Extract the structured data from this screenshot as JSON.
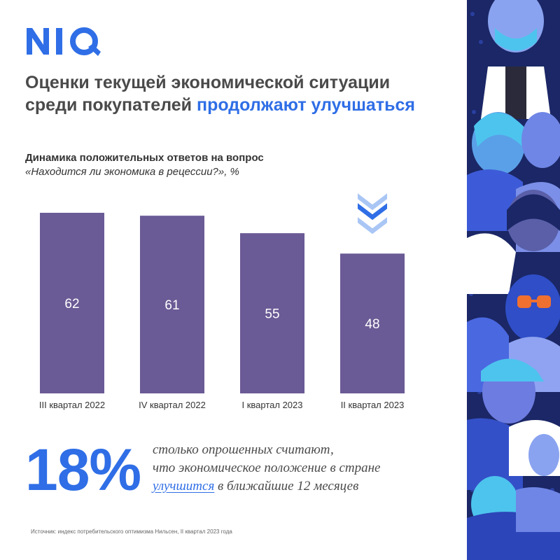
{
  "brand": {
    "logo_text": "NIQ",
    "color": "#2f6ee6"
  },
  "headline": {
    "line1": "Оценки текущей экономической ситуации",
    "line2_prefix": "среди покупателей ",
    "line2_accent": "продолжают улучшаться"
  },
  "subtitle": {
    "line1": "Динамика положительных ответов на вопрос",
    "line2": "«Находится ли экономика в рецессии?», %"
  },
  "chart_data": {
    "type": "bar",
    "categories": [
      "III квартал 2022",
      "IV квартал 2022",
      "I квартал 2023",
      "II квартал 2023"
    ],
    "values": [
      62,
      61,
      55,
      48
    ],
    "ylim": [
      0,
      62
    ],
    "bar_color": "#6a5a95",
    "trend_marker": {
      "icon": "double-chevron-down-icon",
      "category_index": 3,
      "color": "#2f6ee6"
    }
  },
  "stat": {
    "value": "18%",
    "line1": "столько опрошенных считают,",
    "line2": "что экономическое положение в стране",
    "line3_highlight": "улучшится",
    "line3_rest": " в ближайшие 12 месяцев"
  },
  "source": "Источник: индекс потребительского оптимизма Нильсен, II квартал 2023 года",
  "decoration": {
    "illustration": "crowd-illustration",
    "background_color": "#1b2766"
  }
}
